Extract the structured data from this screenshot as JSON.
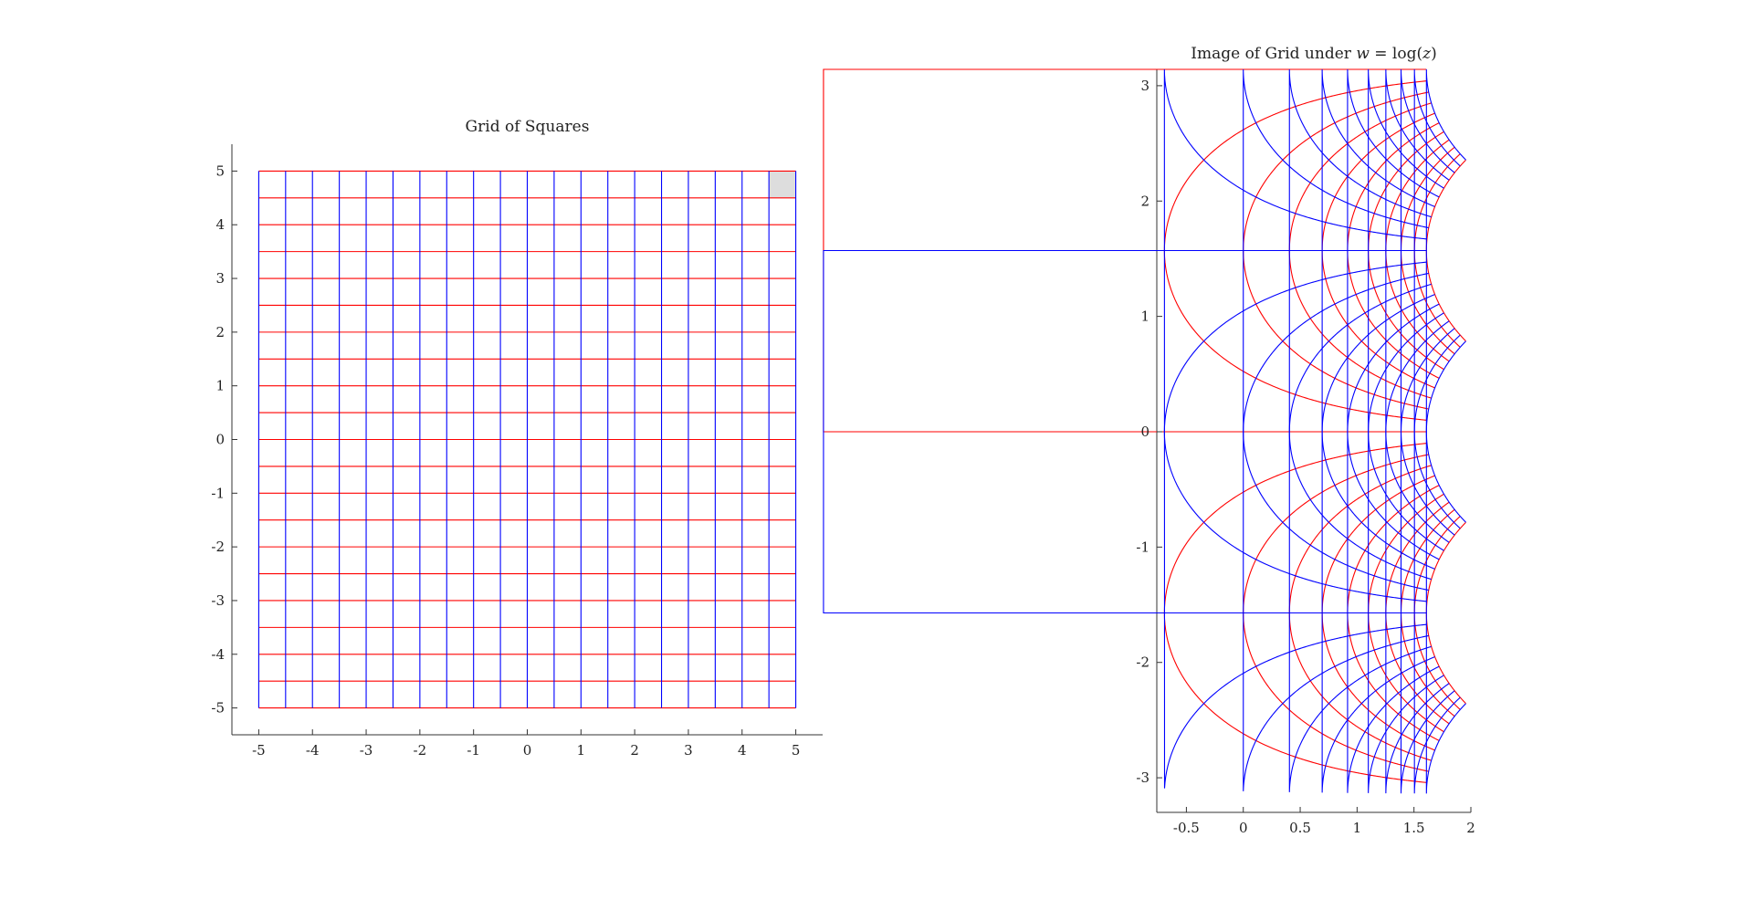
{
  "chart_data": [
    {
      "type": "line",
      "title": "Grid of Squares",
      "xlabel": "",
      "ylabel": "",
      "xlim": [
        -5.5,
        5.5
      ],
      "ylim": [
        -5.5,
        5.5
      ],
      "xticks": [
        -5,
        -4,
        -3,
        -2,
        -1,
        0,
        1,
        2,
        3,
        4,
        5
      ],
      "yticks": [
        -5,
        -4,
        -3,
        -2,
        -1,
        0,
        1,
        2,
        3,
        4,
        5
      ],
      "grid": false,
      "series": [
        {
          "description": "horizontal grid lines y = c for x in [-5, 5]",
          "color": "#ff0000",
          "levels": [
            -5,
            -4.5,
            -4,
            -3.5,
            -3,
            -2.5,
            -2,
            -1.5,
            -1,
            -0.5,
            0,
            0.5,
            1,
            1.5,
            2,
            2.5,
            3,
            3.5,
            4,
            4.5,
            5
          ]
        },
        {
          "description": "vertical grid lines x = c for y in [-5, 5]",
          "color": "#0000ff",
          "levels": [
            -5,
            -4.5,
            -4,
            -3.5,
            -3,
            -2.5,
            -2,
            -1.5,
            -1,
            -0.5,
            0,
            0.5,
            1,
            1.5,
            2,
            2.5,
            3,
            3.5,
            4,
            4.5,
            5
          ]
        }
      ],
      "highlight_cell": {
        "x": [
          4.5,
          5
        ],
        "y": [
          4.5,
          5
        ],
        "color": "#dddddd"
      }
    },
    {
      "type": "line",
      "title": "Image of Grid under w = log(z)",
      "title_parts": {
        "prefix": "Image of Grid under ",
        "w": "w",
        "eq": " = log(",
        "z": "z",
        "suffix": ")"
      },
      "xlabel": "",
      "ylabel": "",
      "xlim": [
        -0.76,
        2
      ],
      "ylim": [
        -3.3,
        3.14159
      ],
      "xticks": [
        -0.5,
        0,
        0.5,
        1,
        1.5,
        2
      ],
      "yticks": [
        -3,
        -2,
        -1,
        0,
        1,
        2,
        3
      ],
      "grid": false,
      "series": [
        {
          "description": "images of horizontal lines y = c",
          "color": "#ff0000"
        },
        {
          "description": "images of vertical lines x = c",
          "color": "#0000ff"
        }
      ]
    }
  ]
}
